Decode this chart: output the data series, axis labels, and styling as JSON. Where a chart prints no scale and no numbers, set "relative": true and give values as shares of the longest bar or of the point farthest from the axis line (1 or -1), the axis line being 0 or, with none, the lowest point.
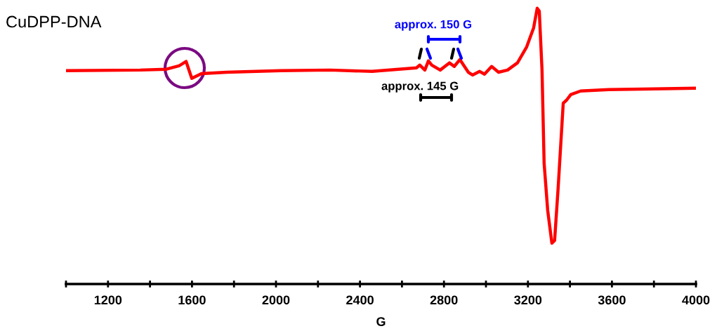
{
  "chart_data": {
    "type": "line",
    "title": "CuDPP-DNA",
    "xlabel": "G",
    "relative": true,
    "x": [
      1000,
      1354,
      1478,
      1538,
      1572,
      1599,
      1645,
      1766,
      2023,
      2257,
      2458,
      2669,
      2685,
      2709,
      2726,
      2742,
      2782,
      2826,
      2849,
      2876,
      2916,
      2936,
      2970,
      2993,
      3027,
      3060,
      3103,
      3150,
      3194,
      3227,
      3244,
      3254,
      3267,
      3277,
      3294,
      3314,
      3327,
      3344,
      3368,
      3384,
      3404,
      3451,
      3585,
      3752,
      3996
    ],
    "series": [
      {
        "color": "#ff0000",
        "values": [
          0.774,
          0.776,
          0.779,
          0.791,
          0.807,
          0.746,
          0.763,
          0.768,
          0.774,
          0.776,
          0.771,
          0.784,
          0.794,
          0.776,
          0.809,
          0.794,
          0.776,
          0.802,
          0.789,
          0.814,
          0.768,
          0.758,
          0.771,
          0.761,
          0.789,
          0.768,
          0.776,
          0.802,
          0.86,
          0.929,
          1.0,
          0.99,
          0.776,
          0.438,
          0.267,
          0.148,
          0.158,
          0.351,
          0.656,
          0.667,
          0.687,
          0.7,
          0.705,
          0.707,
          0.71
        ]
      }
    ],
    "xlim": [
      1000,
      4000
    ],
    "xticks": [
      {
        "value": 1000,
        "label": null
      },
      1200,
      {
        "value": 1400,
        "label": null
      },
      1600,
      {
        "value": 1800,
        "label": null
      },
      2000,
      {
        "value": 2200,
        "label": null
      },
      2400,
      {
        "value": 2600,
        "label": null
      },
      2800,
      {
        "value": 3000,
        "label": null
      },
      3200,
      {
        "value": 3400,
        "label": null
      },
      3600,
      {
        "value": 3800,
        "label": null
      },
      4000
    ],
    "annotations": [
      "approx. 150 G",
      "approx. 145 G"
    ],
    "grid": false,
    "legend": false
  }
}
